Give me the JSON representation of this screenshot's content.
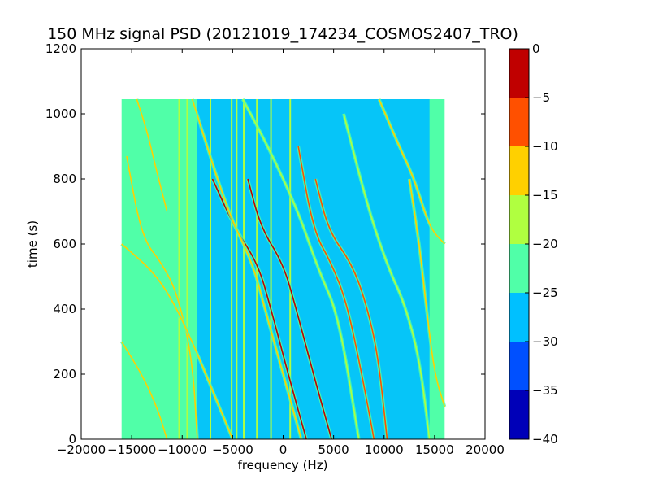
{
  "chart_data": {
    "type": "heatmap",
    "title": "150 MHz signal PSD (20121019_174234_COSMOS2407_TRO)",
    "xlabel": "frequency (Hz)",
    "ylabel": "time (s)",
    "xlim": [
      -20000,
      20000
    ],
    "ylim": [
      0,
      1200
    ],
    "xticks": [
      "−20000",
      "−15000",
      "−10000",
      "−5000",
      "0",
      "5000",
      "10000",
      "15000",
      "20000"
    ],
    "xtick_values": [
      -20000,
      -15000,
      -10000,
      -5000,
      0,
      5000,
      10000,
      15000,
      20000
    ],
    "yticks": [
      "0",
      "200",
      "400",
      "600",
      "800",
      "1000",
      "1200"
    ],
    "ytick_values": [
      0,
      200,
      400,
      600,
      800,
      1000,
      1200
    ],
    "data_extent": {
      "freq": [
        -16000,
        16000
      ],
      "time": [
        0,
        1045
      ]
    },
    "background_level": -25,
    "center_band": {
      "freq": [
        -8500,
        14500
      ],
      "time_top": 1045,
      "level": -30
    },
    "colorbar": {
      "levels": [
        -40,
        -35,
        -30,
        -25,
        -20,
        -15,
        -10,
        -5,
        0
      ],
      "tick_labels": [
        "−40",
        "−35",
        "−30",
        "−25",
        "−20",
        "−15",
        "−10",
        "−5",
        "0"
      ],
      "colors": [
        "#0000b8",
        "#0050ff",
        "#00c0ff",
        "#50ffa8",
        "#b0ff40",
        "#ffd000",
        "#ff5000",
        "#c00000"
      ]
    },
    "vertical_lines": [
      {
        "freq": -10300,
        "level": -20
      },
      {
        "freq": -9500,
        "level": -20
      },
      {
        "freq": -7200,
        "level": -20
      },
      {
        "freq": -5100,
        "level": -20
      },
      {
        "freq": -4600,
        "level": -20
      },
      {
        "freq": -3900,
        "level": -20
      },
      {
        "freq": -2600,
        "level": -20
      },
      {
        "freq": -1200,
        "level": -20
      },
      {
        "freq": 700,
        "level": -20
      }
    ],
    "doppler_traces": [
      {
        "level": -5,
        "points": [
          [
            -3500,
            800
          ],
          [
            -2200,
            650
          ],
          [
            0,
            540
          ],
          [
            1300,
            400
          ],
          [
            3000,
            200
          ],
          [
            4800,
            0
          ]
        ]
      },
      {
        "level": -5,
        "points": [
          [
            -7000,
            800
          ],
          [
            -4800,
            650
          ],
          [
            -2500,
            540
          ],
          [
            -1200,
            400
          ],
          [
            500,
            200
          ],
          [
            2300,
            0
          ]
        ]
      },
      {
        "level": -10,
        "points": [
          [
            3200,
            800
          ],
          [
            4500,
            640
          ],
          [
            6800,
            540
          ],
          [
            8200,
            420
          ],
          [
            9400,
            260
          ],
          [
            10300,
            0
          ]
        ]
      },
      {
        "level": -10,
        "points": [
          [
            1500,
            900
          ],
          [
            3000,
            640
          ],
          [
            4800,
            540
          ],
          [
            6300,
            420
          ],
          [
            7800,
            200
          ],
          [
            9000,
            0
          ]
        ]
      },
      {
        "level": -15,
        "points": [
          [
            -9000,
            1045
          ],
          [
            -5500,
            700
          ],
          [
            -3000,
            540
          ],
          [
            -1800,
            400
          ],
          [
            0,
            200
          ],
          [
            1800,
            0
          ]
        ]
      },
      {
        "level": -15,
        "points": [
          [
            -15500,
            870
          ],
          [
            -14000,
            620
          ],
          [
            -12000,
            540
          ],
          [
            -10500,
            450
          ],
          [
            -9000,
            250
          ],
          [
            -8500,
            0
          ]
        ]
      },
      {
        "level": -15,
        "points": [
          [
            -16000,
            600
          ],
          [
            -13000,
            520
          ],
          [
            -11000,
            430
          ],
          [
            -9000,
            300
          ],
          [
            -7000,
            150
          ],
          [
            -5000,
            0
          ]
        ]
      },
      {
        "level": -15,
        "points": [
          [
            -16000,
            300
          ],
          [
            -14000,
            200
          ],
          [
            -12500,
            100
          ],
          [
            -11500,
            0
          ]
        ]
      },
      {
        "level": -15,
        "points": [
          [
            -14500,
            1045
          ],
          [
            -13500,
            950
          ],
          [
            -12500,
            820
          ],
          [
            -11500,
            700
          ]
        ]
      },
      {
        "level": -15,
        "points": [
          [
            9500,
            1045
          ],
          [
            11500,
            900
          ],
          [
            13000,
            800
          ],
          [
            14500,
            650
          ],
          [
            16000,
            600
          ]
        ]
      },
      {
        "level": -15,
        "points": [
          [
            12500,
            800
          ],
          [
            13500,
            600
          ],
          [
            14200,
            400
          ],
          [
            15000,
            200
          ],
          [
            16000,
            100
          ]
        ]
      },
      {
        "level": -20,
        "points": [
          [
            6000,
            1000
          ],
          [
            8500,
            700
          ],
          [
            10500,
            520
          ],
          [
            12000,
            420
          ],
          [
            13500,
            250
          ],
          [
            14500,
            0
          ]
        ]
      },
      {
        "level": -20,
        "points": [
          [
            -4000,
            1045
          ],
          [
            -1500,
            900
          ],
          [
            1500,
            700
          ],
          [
            3500,
            520
          ],
          [
            5500,
            380
          ],
          [
            7500,
            0
          ]
        ]
      }
    ]
  }
}
